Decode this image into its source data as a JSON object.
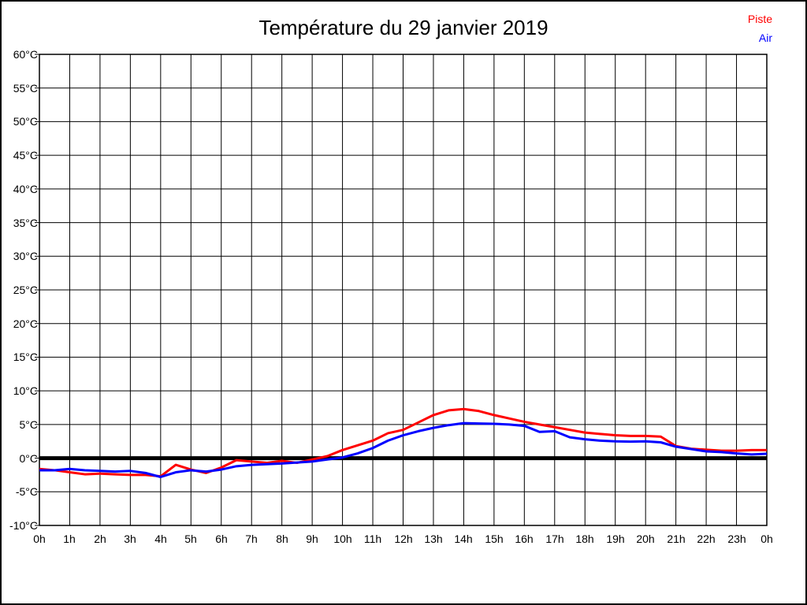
{
  "page": {
    "background": "#ffffff",
    "border_color": "#000000"
  },
  "chart_data": {
    "type": "line",
    "title": "Température du 29 janvier 2019",
    "xlabel": "",
    "ylabel": "",
    "ylim": [
      -10,
      60
    ],
    "y_tick_step": 5,
    "x_hours_range": [
      0,
      24
    ],
    "grid": true,
    "grid_color": "#000000",
    "zero_line": {
      "value": 0,
      "color": "#000000"
    },
    "y_tick_labels": [
      "60°C",
      "55°C",
      "50°C",
      "45°C",
      "40°C",
      "35°C",
      "30°C",
      "25°C",
      "20°C",
      "15°C",
      "10°C",
      "5°C",
      "0°C",
      "-5°C",
      "-10°C"
    ],
    "x_tick_labels": [
      "0h",
      "1h",
      "2h",
      "3h",
      "4h",
      "5h",
      "6h",
      "7h",
      "8h",
      "9h",
      "10h",
      "11h",
      "12h",
      "13h",
      "14h",
      "15h",
      "16h",
      "17h",
      "18h",
      "19h",
      "20h",
      "21h",
      "22h",
      "23h",
      "0h"
    ],
    "legend": {
      "position": "top-right",
      "entries": [
        {
          "label": "Piste",
          "color": "#ff0000"
        },
        {
          "label": "Air",
          "color": "#0000ff"
        }
      ]
    },
    "x": [
      0,
      0.5,
      1,
      1.5,
      2,
      2.5,
      3,
      3.5,
      4,
      4.5,
      5,
      5.5,
      6,
      6.5,
      7,
      7.5,
      8,
      8.5,
      9,
      9.5,
      10,
      10.5,
      11,
      11.5,
      12,
      12.5,
      13,
      13.5,
      14,
      14.5,
      15,
      15.5,
      16,
      16.5,
      17,
      17.5,
      18,
      18.5,
      19,
      19.5,
      20,
      20.5,
      21,
      21.5,
      22,
      22.5,
      23,
      23.5,
      24
    ],
    "series": [
      {
        "name": "Piste",
        "color": "#ff0000",
        "values": [
          -1.6,
          -1.8,
          -2.1,
          -2.4,
          -2.3,
          -2.4,
          -2.5,
          -2.5,
          -2.7,
          -1.0,
          -1.7,
          -2.2,
          -1.4,
          -0.3,
          -0.5,
          -0.7,
          -0.4,
          -0.7,
          -0.2,
          0.3,
          1.2,
          1.9,
          2.6,
          3.7,
          4.2,
          5.3,
          6.4,
          7.1,
          7.3,
          7.0,
          6.4,
          5.9,
          5.4,
          5.0,
          4.6,
          4.2,
          3.8,
          3.6,
          3.4,
          3.3,
          3.3,
          3.2,
          1.8,
          1.4,
          1.25,
          1.1,
          1.1,
          1.2,
          1.2
        ]
      },
      {
        "name": "Air",
        "color": "#0000ff",
        "values": [
          -1.8,
          -1.8,
          -1.6,
          -1.8,
          -1.9,
          -2.0,
          -1.9,
          -2.2,
          -2.8,
          -2.1,
          -1.8,
          -2.0,
          -1.7,
          -1.2,
          -1.0,
          -0.9,
          -0.8,
          -0.65,
          -0.5,
          -0.2,
          0.1,
          0.7,
          1.5,
          2.6,
          3.4,
          4.0,
          4.5,
          4.9,
          5.2,
          5.15,
          5.1,
          5.0,
          4.8,
          3.9,
          4.0,
          3.1,
          2.8,
          2.6,
          2.5,
          2.45,
          2.5,
          2.35,
          1.7,
          1.35,
          1.0,
          0.9,
          0.7,
          0.55,
          0.65
        ]
      }
    ]
  }
}
